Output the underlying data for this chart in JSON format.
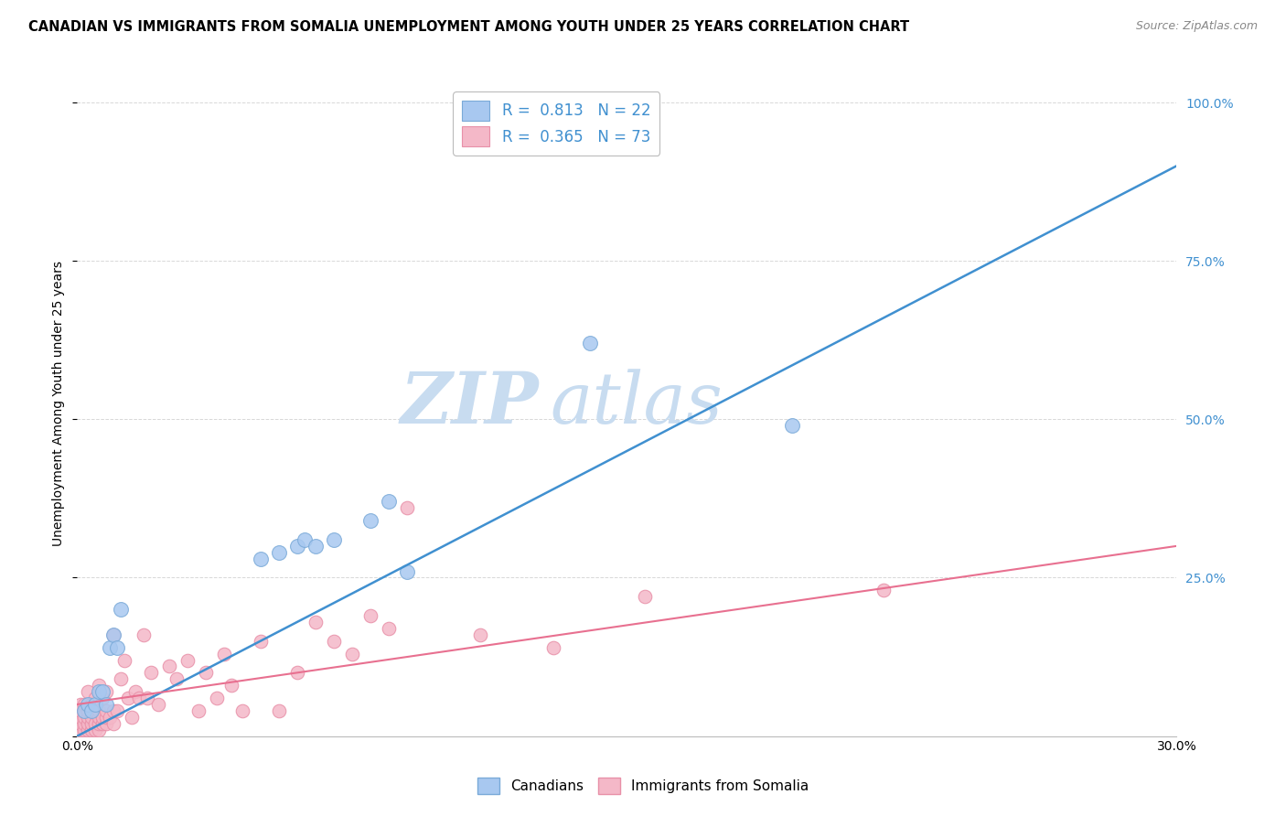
{
  "title": "CANADIAN VS IMMIGRANTS FROM SOMALIA UNEMPLOYMENT AMONG YOUTH UNDER 25 YEARS CORRELATION CHART",
  "source": "Source: ZipAtlas.com",
  "ylabel": "Unemployment Among Youth under 25 years",
  "legend_blue_r": "0.813",
  "legend_blue_n": "22",
  "legend_pink_r": "0.365",
  "legend_pink_n": "73",
  "blue_scatter_color": "#A8C8F0",
  "blue_scatter_edge": "#7AAAD8",
  "pink_scatter_color": "#F4B8C8",
  "pink_scatter_edge": "#E890A8",
  "blue_line_color": "#4090D0",
  "pink_line_color": "#E87090",
  "watermark_color": "#C8DCF0",
  "background_color": "#FFFFFF",
  "grid_color": "#D8D8D8",
  "canadians_x": [
    0.002,
    0.003,
    0.004,
    0.005,
    0.006,
    0.007,
    0.008,
    0.009,
    0.01,
    0.011,
    0.012,
    0.05,
    0.055,
    0.06,
    0.062,
    0.065,
    0.07,
    0.08,
    0.085,
    0.09,
    0.14,
    0.195
  ],
  "canadians_y": [
    0.04,
    0.05,
    0.04,
    0.05,
    0.07,
    0.07,
    0.05,
    0.14,
    0.16,
    0.14,
    0.2,
    0.28,
    0.29,
    0.3,
    0.31,
    0.3,
    0.31,
    0.34,
    0.37,
    0.26,
    0.62,
    0.49
  ],
  "somalia_x": [
    0.001,
    0.001,
    0.001,
    0.001,
    0.001,
    0.002,
    0.002,
    0.002,
    0.002,
    0.002,
    0.003,
    0.003,
    0.003,
    0.003,
    0.003,
    0.004,
    0.004,
    0.004,
    0.004,
    0.004,
    0.005,
    0.005,
    0.005,
    0.005,
    0.006,
    0.006,
    0.006,
    0.006,
    0.006,
    0.007,
    0.007,
    0.007,
    0.008,
    0.008,
    0.008,
    0.008,
    0.009,
    0.01,
    0.01,
    0.01,
    0.011,
    0.012,
    0.013,
    0.014,
    0.015,
    0.016,
    0.017,
    0.018,
    0.019,
    0.02,
    0.022,
    0.025,
    0.027,
    0.03,
    0.033,
    0.035,
    0.038,
    0.04,
    0.042,
    0.045,
    0.05,
    0.055,
    0.06,
    0.065,
    0.07,
    0.075,
    0.08,
    0.085,
    0.09,
    0.11,
    0.13,
    0.155,
    0.22
  ],
  "somalia_y": [
    0.01,
    0.02,
    0.03,
    0.04,
    0.05,
    0.01,
    0.02,
    0.03,
    0.04,
    0.05,
    0.01,
    0.02,
    0.03,
    0.04,
    0.07,
    0.01,
    0.02,
    0.03,
    0.04,
    0.05,
    0.01,
    0.02,
    0.04,
    0.06,
    0.01,
    0.02,
    0.03,
    0.04,
    0.08,
    0.02,
    0.03,
    0.06,
    0.02,
    0.03,
    0.04,
    0.07,
    0.03,
    0.02,
    0.04,
    0.16,
    0.04,
    0.09,
    0.12,
    0.06,
    0.03,
    0.07,
    0.06,
    0.16,
    0.06,
    0.1,
    0.05,
    0.11,
    0.09,
    0.12,
    0.04,
    0.1,
    0.06,
    0.13,
    0.08,
    0.04,
    0.15,
    0.04,
    0.1,
    0.18,
    0.15,
    0.13,
    0.19,
    0.17,
    0.36,
    0.16,
    0.14,
    0.22,
    0.23
  ],
  "xlim": [
    0.0,
    0.3
  ],
  "ylim": [
    0.0,
    1.05
  ],
  "blue_line_x": [
    0.0,
    0.3
  ],
  "blue_line_y": [
    0.0,
    0.9
  ],
  "pink_line_x": [
    0.0,
    0.3
  ],
  "pink_line_y": [
    0.05,
    0.3
  ],
  "title_fontsize": 10.5,
  "source_fontsize": 9,
  "ylabel_fontsize": 10,
  "tick_fontsize": 10,
  "legend_fontsize": 12
}
